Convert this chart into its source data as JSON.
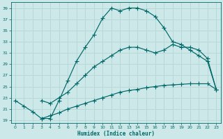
{
  "xlabel": "Humidex (Indice chaleur)",
  "bg_color": "#cce8e8",
  "grid_color": "#b8d8d8",
  "line_color": "#006868",
  "xlim": [
    -0.5,
    23.5
  ],
  "ylim": [
    18.5,
    40
  ],
  "xticks": [
    0,
    1,
    2,
    3,
    4,
    5,
    6,
    7,
    8,
    9,
    10,
    11,
    12,
    13,
    14,
    15,
    16,
    17,
    18,
    19,
    20,
    21,
    22,
    23
  ],
  "yticks": [
    19,
    21,
    23,
    25,
    27,
    29,
    31,
    33,
    35,
    37,
    39
  ],
  "line1_x": [
    0,
    1,
    2,
    3,
    4,
    5,
    6,
    7,
    8,
    9,
    10,
    11,
    12,
    13,
    14,
    15,
    16,
    17,
    18,
    19,
    20,
    21,
    22,
    23
  ],
  "line1_y": [
    22.5,
    21.5,
    20.5,
    19.3,
    19.3,
    22.5,
    26.0,
    29.5,
    32.0,
    34.2,
    37.2,
    39.0,
    38.5,
    39.0,
    39.0,
    38.5,
    37.5,
    35.5,
    33.0,
    32.5,
    31.5,
    30.5,
    29.5,
    24.5
  ],
  "line2_x": [
    3,
    4,
    5,
    6,
    7,
    8,
    9,
    10,
    11,
    12,
    13,
    14,
    15,
    16,
    17,
    18,
    19,
    20,
    21,
    22,
    23
  ],
  "line2_y": [
    22.5,
    22.0,
    23.0,
    24.0,
    25.5,
    27.0,
    28.5,
    29.5,
    30.5,
    31.5,
    32.0,
    32.0,
    31.5,
    31.0,
    31.5,
    32.5,
    32.0,
    32.0,
    31.5,
    30.0,
    24.5
  ],
  "line3_x": [
    3,
    4,
    5,
    6,
    7,
    8,
    9,
    10,
    11,
    12,
    13,
    14,
    15,
    16,
    17,
    18,
    19,
    20,
    21,
    22,
    23
  ],
  "line3_y": [
    19.3,
    19.8,
    20.3,
    21.0,
    21.5,
    22.0,
    22.5,
    23.0,
    23.5,
    24.0,
    24.3,
    24.5,
    24.8,
    25.0,
    25.2,
    25.3,
    25.4,
    25.5,
    25.5,
    25.5,
    24.5
  ]
}
